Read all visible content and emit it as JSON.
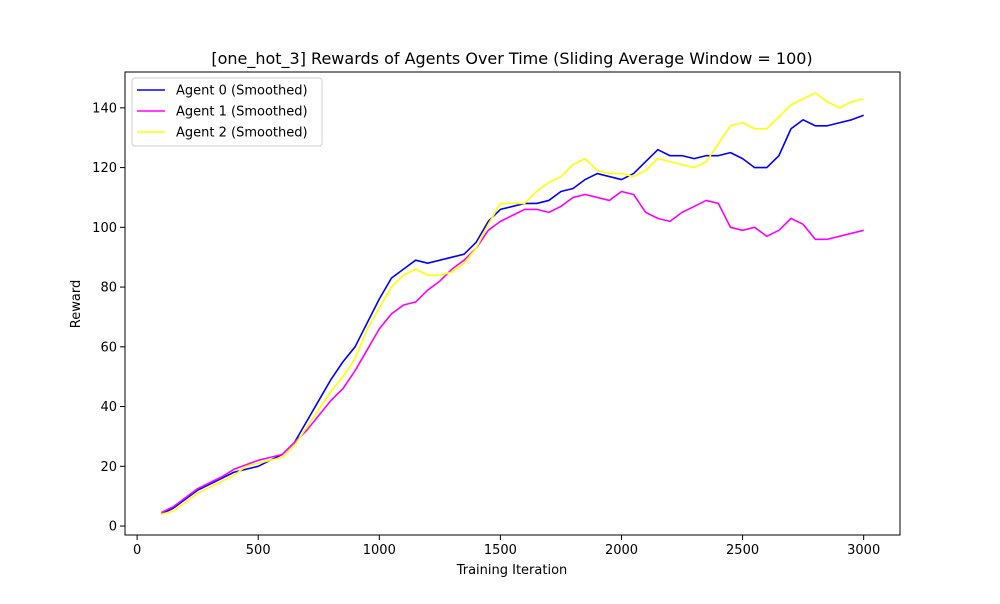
{
  "chart_data": {
    "type": "line",
    "title": "[one_hot_3] Rewards of Agents Over Time (Sliding Average Window = 100)",
    "xlabel": "Training Iteration",
    "ylabel": "Reward",
    "xlim": [
      -50,
      3150
    ],
    "ylim": [
      -3,
      152
    ],
    "xticks": [
      0,
      500,
      1000,
      1500,
      2000,
      2500,
      3000
    ],
    "yticks": [
      0,
      20,
      40,
      60,
      80,
      100,
      120,
      140
    ],
    "grid": false,
    "legend_position": "top-left",
    "x": [
      100,
      150,
      200,
      250,
      300,
      350,
      400,
      450,
      500,
      550,
      600,
      650,
      700,
      750,
      800,
      850,
      900,
      950,
      1000,
      1050,
      1100,
      1150,
      1200,
      1250,
      1300,
      1350,
      1400,
      1450,
      1500,
      1550,
      1600,
      1650,
      1700,
      1750,
      1800,
      1850,
      1900,
      1950,
      2000,
      2050,
      2100,
      2150,
      2200,
      2250,
      2300,
      2350,
      2400,
      2450,
      2500,
      2550,
      2600,
      2650,
      2700,
      2750,
      2800,
      2850,
      2900,
      2950,
      3000
    ],
    "series": [
      {
        "name": "Agent 0 (Smoothed)",
        "color": "#0000ff",
        "values": [
          4,
          6,
          9,
          12,
          14,
          16,
          18,
          19,
          20,
          22,
          24,
          28,
          35,
          42,
          49,
          55,
          60,
          68,
          76,
          83,
          86,
          89,
          88,
          89,
          90,
          91,
          95,
          102,
          106,
          107,
          108,
          108,
          109,
          112,
          113,
          116,
          118,
          117,
          116,
          118,
          122,
          126,
          124,
          124,
          123,
          124,
          124,
          125,
          123,
          120,
          120,
          124,
          133,
          136,
          134,
          134,
          135,
          136,
          137.5
        ]
      },
      {
        "name": "Agent 1 (Smoothed)",
        "color": "#ff00ff",
        "values": [
          4.5,
          6.5,
          9.5,
          12.5,
          14.5,
          16.5,
          19,
          20.5,
          22,
          23,
          24,
          28,
          32,
          37,
          42,
          46,
          52,
          59,
          66,
          71,
          74,
          75,
          79,
          82,
          86,
          89,
          93,
          99,
          102,
          104,
          106,
          106,
          105,
          107,
          110,
          111,
          110,
          109,
          112,
          111,
          105,
          103,
          102,
          105,
          107,
          109,
          108,
          100,
          99,
          100,
          97,
          99,
          103,
          101,
          96,
          96,
          97,
          98,
          99
        ]
      },
      {
        "name": "Agent 2 (Smoothed)",
        "color": "#ffff00",
        "values": [
          4,
          5,
          8,
          11,
          13,
          15,
          17,
          20,
          21,
          22,
          23,
          27,
          33,
          39,
          45,
          50,
          56,
          66,
          73,
          80,
          84,
          86,
          84,
          84,
          85,
          88,
          93,
          101,
          108,
          108,
          108,
          112,
          115,
          117,
          121,
          123,
          119,
          118,
          118,
          117,
          119,
          123,
          122,
          121,
          120,
          122,
          128,
          134,
          135,
          133,
          133,
          137,
          141,
          143,
          145,
          142,
          140,
          142,
          143
        ]
      }
    ]
  }
}
